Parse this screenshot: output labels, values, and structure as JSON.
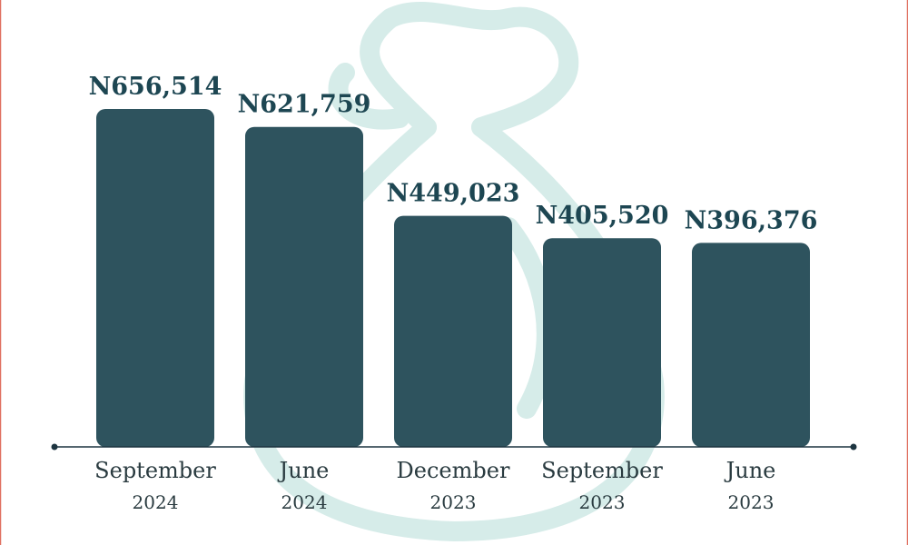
{
  "chart_data": {
    "type": "bar",
    "categories": [
      "September 2024",
      "June 2024",
      "December 2023",
      "September 2023",
      "June 2023"
    ],
    "values": [
      656514,
      621759,
      449023,
      405520,
      396376
    ],
    "value_labels": [
      "N656,514",
      "N621,759",
      "N449,023",
      "N405,520",
      "N396,376"
    ],
    "color": "#2e535e"
  }
}
